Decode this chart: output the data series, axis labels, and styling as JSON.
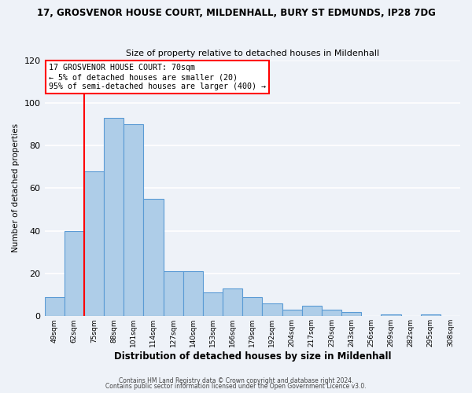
{
  "title_line1": "17, GROSVENOR HOUSE COURT, MILDENHALL, BURY ST EDMUNDS, IP28 7DG",
  "title_line2": "Size of property relative to detached houses in Mildenhall",
  "xlabel": "Distribution of detached houses by size in Mildenhall",
  "ylabel": "Number of detached properties",
  "bin_labels": [
    "49sqm",
    "62sqm",
    "75sqm",
    "88sqm",
    "101sqm",
    "114sqm",
    "127sqm",
    "140sqm",
    "153sqm",
    "166sqm",
    "179sqm",
    "192sqm",
    "204sqm",
    "217sqm",
    "230sqm",
    "243sqm",
    "256sqm",
    "269sqm",
    "282sqm",
    "295sqm",
    "308sqm"
  ],
  "bar_heights": [
    9,
    40,
    68,
    93,
    90,
    55,
    21,
    21,
    11,
    13,
    9,
    6,
    3,
    5,
    3,
    2,
    0,
    1,
    0,
    1,
    0
  ],
  "bar_color": "#aecde8",
  "bar_edge_color": "#5b9bd5",
  "annotation_line1": "17 GROSVENOR HOUSE COURT: 70sqm",
  "annotation_line2": "← 5% of detached houses are smaller (20)",
  "annotation_line3": "95% of semi-detached houses are larger (400) →",
  "ylim": [
    0,
    120
  ],
  "yticks": [
    0,
    20,
    40,
    60,
    80,
    100,
    120
  ],
  "footer_line1": "Contains HM Land Registry data © Crown copyright and database right 2024.",
  "footer_line2": "Contains public sector information licensed under the Open Government Licence v3.0.",
  "background_color": "#eef2f8",
  "grid_color": "#ffffff",
  "red_line_x": 1.5
}
